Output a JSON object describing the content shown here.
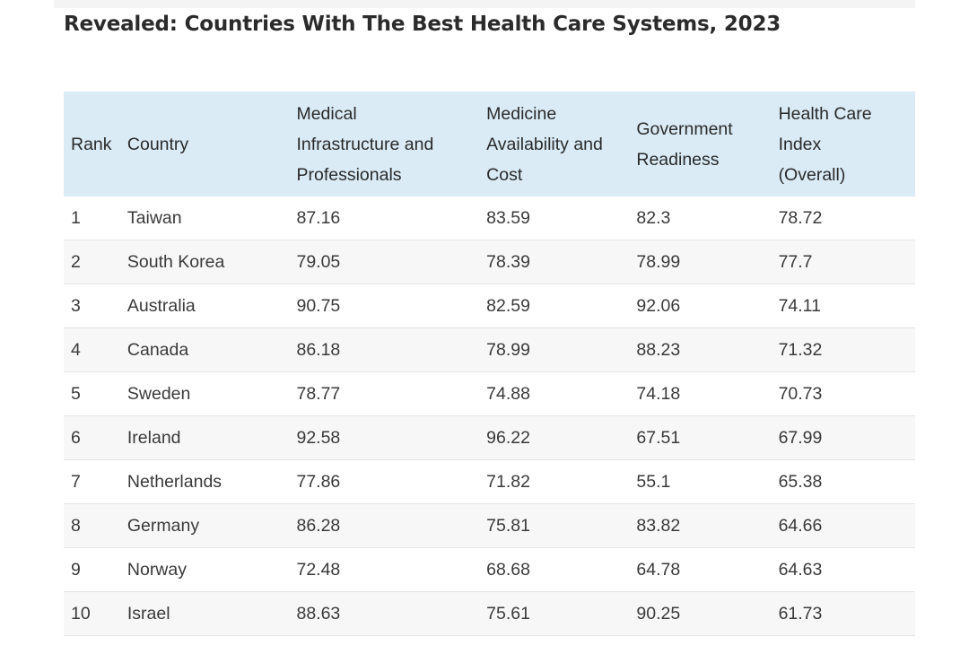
{
  "page": {
    "title": "Revealed: Countries With The Best Health Care Systems, 2023"
  },
  "table": {
    "headers": {
      "rank": "Rank",
      "country": "Country",
      "medical_infrastructure": [
        "Medical",
        "Infrastructure and",
        "Professionals"
      ],
      "medicine_availability": [
        "Medicine",
        "Availability and",
        "Cost"
      ],
      "government_readiness": [
        "Government",
        "Readiness"
      ],
      "health_care_index": [
        "Health Care",
        "Index",
        "(Overall)"
      ]
    },
    "rows": [
      {
        "rank": "1",
        "country": "Taiwan",
        "medical_infrastructure": "87.16",
        "medicine_availability": "83.59",
        "government_readiness": "82.3",
        "health_care_index": "78.72"
      },
      {
        "rank": "2",
        "country": "South Korea",
        "medical_infrastructure": "79.05",
        "medicine_availability": "78.39",
        "government_readiness": "78.99",
        "health_care_index": "77.7"
      },
      {
        "rank": "3",
        "country": "Australia",
        "medical_infrastructure": "90.75",
        "medicine_availability": "82.59",
        "government_readiness": "92.06",
        "health_care_index": "74.11"
      },
      {
        "rank": "4",
        "country": "Canada",
        "medical_infrastructure": "86.18",
        "medicine_availability": "78.99",
        "government_readiness": "88.23",
        "health_care_index": "71.32"
      },
      {
        "rank": "5",
        "country": "Sweden",
        "medical_infrastructure": "78.77",
        "medicine_availability": "74.88",
        "government_readiness": "74.18",
        "health_care_index": "70.73"
      },
      {
        "rank": "6",
        "country": "Ireland",
        "medical_infrastructure": "92.58",
        "medicine_availability": "96.22",
        "government_readiness": "67.51",
        "health_care_index": "67.99"
      },
      {
        "rank": "7",
        "country": "Netherlands",
        "medical_infrastructure": "77.86",
        "medicine_availability": "71.82",
        "government_readiness": "55.1",
        "health_care_index": "65.38"
      },
      {
        "rank": "8",
        "country": "Germany",
        "medical_infrastructure": "86.28",
        "medicine_availability": "75.81",
        "government_readiness": "83.82",
        "health_care_index": "64.66"
      },
      {
        "rank": "9",
        "country": "Norway",
        "medical_infrastructure": "72.48",
        "medicine_availability": "68.68",
        "government_readiness": "64.78",
        "health_care_index": "64.63"
      },
      {
        "rank": "10",
        "country": "Israel",
        "medical_infrastructure": "88.63",
        "medicine_availability": "75.61",
        "government_readiness": "90.25",
        "health_care_index": "61.73"
      }
    ]
  },
  "colors": {
    "header_background": "#daebf5",
    "even_row_background": "#f7f7f7",
    "text": "#333333"
  }
}
